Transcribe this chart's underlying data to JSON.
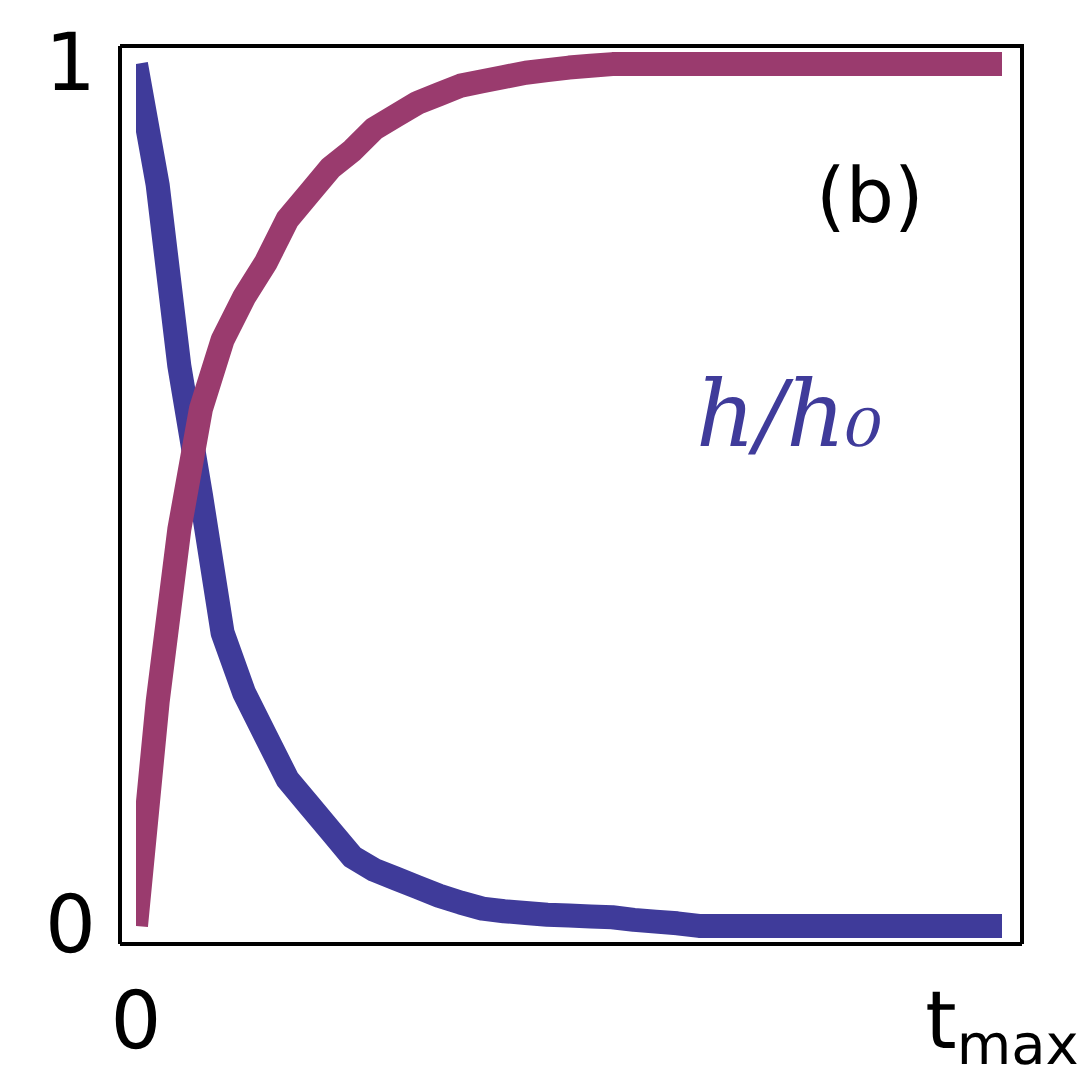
{
  "chart_data": {
    "type": "line",
    "annotations": [
      "(b)"
    ],
    "categories": [
      "0",
      null,
      null,
      null,
      null,
      null,
      null,
      null,
      null,
      null,
      null,
      null,
      null,
      null,
      null,
      null,
      null,
      null,
      null,
      null,
      null,
      null,
      null,
      null,
      null,
      null,
      null,
      null,
      null,
      null,
      null,
      null,
      null,
      null,
      null,
      null,
      null,
      null,
      null,
      null,
      "t$_{max}$"
    ],
    "ylim": [
      -0.021,
      1.021
    ],
    "yticks": [
      0,
      1
    ],
    "grid": false,
    "legend": false,
    "marker": "none",
    "line_style": "solid",
    "series": [
      {
        "name": "h/h₀",
        "color": "#3f3b9a",
        "values": [
          1,
          0.86,
          0.65,
          0.5,
          0.34,
          0.27,
          0.22,
          0.17,
          0.14,
          0.11,
          0.08,
          0.065,
          0.055,
          0.045,
          0.035,
          0.027,
          0.02,
          0.017,
          0.015,
          0.013,
          0.012,
          0.011,
          0.01,
          0.007,
          0.005,
          0.003,
          0,
          0,
          0,
          0,
          0,
          0,
          0,
          0,
          0,
          0,
          0,
          0,
          0,
          0,
          0
        ]
      },
      {
        "color": "#9a3b6e",
        "values": [
          0,
          0.26,
          0.46,
          0.6,
          0.68,
          0.73,
          0.77,
          0.82,
          0.85,
          0.88,
          0.9,
          0.925,
          0.94,
          0.955,
          0.965,
          0.975,
          0.98,
          0.985,
          0.99,
          0.993,
          0.996,
          0.998,
          1,
          1,
          1,
          1,
          1,
          1,
          1,
          1,
          1,
          1,
          1,
          1,
          1,
          1,
          1,
          1,
          1,
          1,
          1
        ]
      }
    ]
  }
}
